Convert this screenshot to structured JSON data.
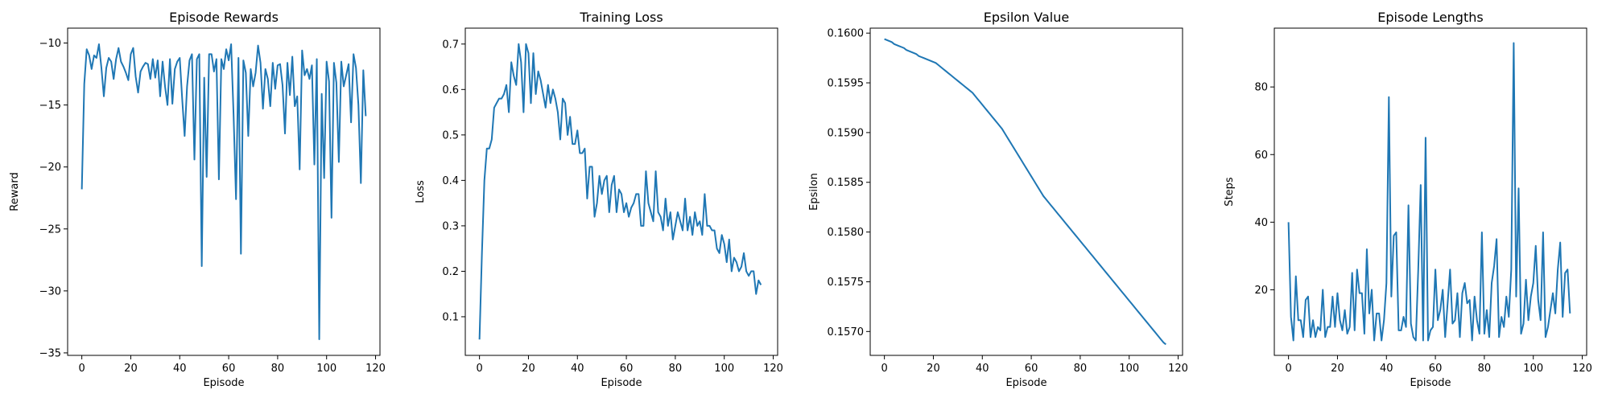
{
  "chart_data": [
    {
      "type": "line",
      "title": "Episode Rewards",
      "xlabel": "Episode",
      "ylabel": "Reward",
      "xlim": [
        -5.8,
        121.8
      ],
      "ylim": [
        -35.2,
        -8.8
      ],
      "xticks": [
        0,
        20,
        40,
        60,
        80,
        100,
        120
      ],
      "yticks": [
        -35,
        -30,
        -25,
        -20,
        -15,
        -10
      ],
      "series": [
        {
          "values": [
            -21.8,
            -13.3,
            -10.5,
            -11.0,
            -12.1,
            -11.0,
            -11.2,
            -10.1,
            -12.0,
            -14.3,
            -12.0,
            -11.2,
            -11.5,
            -12.9,
            -11.3,
            -10.4,
            -11.5,
            -11.9,
            -12.4,
            -13.0,
            -10.9,
            -10.4,
            -12.7,
            -14.0,
            -12.3,
            -11.9,
            -11.6,
            -11.7,
            -12.9,
            -11.3,
            -12.8,
            -11.4,
            -14.3,
            -11.5,
            -13.5,
            -15.0,
            -11.3,
            -14.9,
            -12.1,
            -11.5,
            -11.2,
            -14.5,
            -17.5,
            -13.5,
            -11.4,
            -10.9,
            -19.4,
            -11.3,
            -10.9,
            -28.0,
            -12.8,
            -20.8,
            -10.9,
            -10.9,
            -12.3,
            -11.3,
            -21.0,
            -11.3,
            -12.1,
            -10.5,
            -11.4,
            -10.1,
            -15.8,
            -22.6,
            -11.2,
            -27.0,
            -11.4,
            -12.4,
            -17.5,
            -12.1,
            -13.5,
            -12.4,
            -10.2,
            -11.6,
            -15.3,
            -12.1,
            -12.9,
            -15.1,
            -11.6,
            -13.7,
            -11.8,
            -11.7,
            -13.4,
            -17.3,
            -11.6,
            -14.2,
            -11.1,
            -15.1,
            -14.3,
            -20.2,
            -10.6,
            -12.6,
            -12.1,
            -12.9,
            -11.8,
            -19.8,
            -11.3,
            -33.9,
            -14.1,
            -20.9,
            -11.5,
            -13.1,
            -24.1,
            -11.6,
            -13.2,
            -19.6,
            -11.5,
            -13.5,
            -12.6,
            -11.7,
            -16.4,
            -10.9,
            -12.0,
            -15.0,
            -21.3,
            -12.2,
            -15.9
          ]
        }
      ]
    },
    {
      "type": "line",
      "title": "Training Loss",
      "xlabel": "Episode",
      "ylabel": "Loss",
      "xlim": [
        -5.8,
        121.8
      ],
      "ylim": [
        0.015,
        0.735
      ],
      "xticks": [
        0,
        20,
        40,
        60,
        80,
        100,
        120
      ],
      "yticks": [
        0.1,
        0.2,
        0.3,
        0.4,
        0.5,
        0.6,
        0.7
      ],
      "series": [
        {
          "values": [
            0.05,
            0.24,
            0.4,
            0.47,
            0.47,
            0.49,
            0.56,
            0.57,
            0.58,
            0.58,
            0.59,
            0.61,
            0.55,
            0.66,
            0.63,
            0.61,
            0.7,
            0.66,
            0.55,
            0.7,
            0.68,
            0.57,
            0.68,
            0.59,
            0.64,
            0.62,
            0.59,
            0.56,
            0.61,
            0.57,
            0.6,
            0.58,
            0.55,
            0.49,
            0.58,
            0.57,
            0.5,
            0.54,
            0.48,
            0.48,
            0.51,
            0.46,
            0.46,
            0.47,
            0.36,
            0.43,
            0.43,
            0.32,
            0.35,
            0.41,
            0.37,
            0.4,
            0.41,
            0.33,
            0.39,
            0.41,
            0.33,
            0.38,
            0.37,
            0.33,
            0.35,
            0.32,
            0.34,
            0.35,
            0.37,
            0.37,
            0.3,
            0.3,
            0.42,
            0.35,
            0.33,
            0.31,
            0.42,
            0.33,
            0.32,
            0.29,
            0.36,
            0.3,
            0.33,
            0.27,
            0.3,
            0.33,
            0.31,
            0.29,
            0.36,
            0.29,
            0.32,
            0.28,
            0.33,
            0.3,
            0.31,
            0.28,
            0.37,
            0.3,
            0.3,
            0.29,
            0.29,
            0.25,
            0.24,
            0.28,
            0.26,
            0.22,
            0.27,
            0.2,
            0.23,
            0.22,
            0.2,
            0.21,
            0.24,
            0.2,
            0.19,
            0.2,
            0.2,
            0.15,
            0.18,
            0.17
          ]
        }
      ]
    },
    {
      "type": "line",
      "title": "Epsilon Value",
      "xlabel": "Episode",
      "ylabel": "Epsilon",
      "xlim": [
        -5.8,
        121.8
      ],
      "ylim": [
        0.15676,
        0.16005
      ],
      "xticks": [
        0,
        20,
        40,
        60,
        80,
        100,
        120
      ],
      "yticks": [
        0.157,
        0.1575,
        0.158,
        0.1585,
        0.159,
        0.1595,
        0.16
      ],
      "series": [
        {
          "values": [
            0.15994,
            0.15993,
            0.15992,
            0.15991,
            0.15989,
            0.15988,
            0.15987,
            0.15986,
            0.15985,
            0.15983,
            0.15982,
            0.15981,
            0.1598,
            0.15979,
            0.15977,
            0.15976,
            0.15975,
            0.15974,
            0.15973,
            0.15972,
            0.15971,
            0.1597,
            0.15968,
            0.15966,
            0.15964,
            0.15962,
            0.1596,
            0.15958,
            0.15956,
            0.15954,
            0.15952,
            0.1595,
            0.15948,
            0.15946,
            0.15944,
            0.15942,
            0.1594,
            0.15937,
            0.15934,
            0.15931,
            0.15928,
            0.15925,
            0.15922,
            0.15919,
            0.15916,
            0.15913,
            0.1591,
            0.15907,
            0.15904,
            0.159,
            0.15896,
            0.15892,
            0.15888,
            0.15884,
            0.1588,
            0.15876,
            0.15872,
            0.15868,
            0.15864,
            0.1586,
            0.15856,
            0.15852,
            0.15848,
            0.15844,
            0.1584,
            0.15836,
            0.15833,
            0.1583,
            0.15827,
            0.15824,
            0.15821,
            0.15818,
            0.15815,
            0.15812,
            0.15809,
            0.15806,
            0.15803,
            0.158,
            0.15797,
            0.15794,
            0.15791,
            0.15788,
            0.15785,
            0.15782,
            0.15779,
            0.15776,
            0.15773,
            0.1577,
            0.15767,
            0.15764,
            0.15761,
            0.15758,
            0.15755,
            0.15752,
            0.15749,
            0.15746,
            0.15743,
            0.1574,
            0.15737,
            0.15734,
            0.15731,
            0.15728,
            0.15725,
            0.15722,
            0.15719,
            0.15716,
            0.15713,
            0.1571,
            0.15707,
            0.15704,
            0.15701,
            0.15698,
            0.15695,
            0.15692,
            0.15689,
            0.15687
          ]
        }
      ]
    },
    {
      "type": "line",
      "title": "Episode Lengths",
      "xlabel": "Episode",
      "ylabel": "Steps",
      "xlim": [
        -5.8,
        121.8
      ],
      "ylim": [
        0.6,
        97.4
      ],
      "xticks": [
        0,
        20,
        40,
        60,
        80,
        100,
        120
      ],
      "yticks": [
        20,
        40,
        60,
        80
      ],
      "series": [
        {
          "values": [
            40,
            12,
            5,
            24,
            11,
            11,
            6,
            17,
            18,
            6,
            11,
            6,
            9,
            8,
            20,
            6,
            9,
            9,
            18,
            9,
            19,
            11,
            8,
            14,
            7,
            9,
            25,
            8,
            26,
            19,
            19,
            7,
            32,
            13,
            20,
            5,
            13,
            13,
            5,
            11,
            22,
            77,
            18,
            36,
            37,
            8,
            8,
            12,
            9,
            45,
            10,
            6,
            5,
            26,
            51,
            5,
            65,
            5,
            8,
            9,
            26,
            11,
            14,
            20,
            6,
            16,
            26,
            10,
            11,
            19,
            6,
            19,
            22,
            16,
            17,
            5,
            18,
            11,
            7,
            37,
            7,
            14,
            6,
            22,
            27,
            35,
            6,
            12,
            9,
            18,
            12,
            26,
            93,
            18,
            50,
            7,
            10,
            23,
            11,
            18,
            22,
            33,
            17,
            11,
            37,
            6,
            9,
            14,
            19,
            13,
            26,
            34,
            12,
            25,
            26,
            13
          ]
        }
      ]
    }
  ]
}
